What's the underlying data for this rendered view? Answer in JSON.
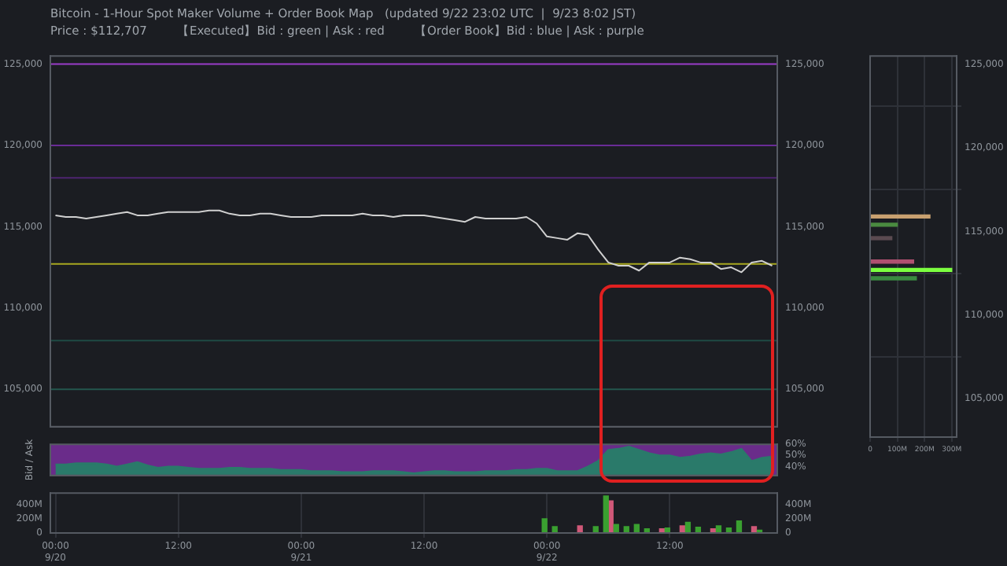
{
  "chart_data": [
    {
      "type": "line",
      "title": "Bitcoin - 1-Hour Spot Maker Volume + Order Book Map   (updated 9/22 23:02 UTC  |  9/23 8:02 JST)",
      "subtitle": "Price : $112,707        【Executed】Bid : green | Ask : red        【Order Book】Bid : blue | Ask : purple",
      "categories": [
        null,
        null,
        null,
        null,
        null,
        null,
        null,
        null,
        null,
        null,
        null,
        null,
        null,
        null,
        null,
        null,
        null,
        null,
        null,
        null,
        null,
        null,
        null,
        null,
        null,
        null,
        null,
        null,
        null,
        null,
        null,
        null,
        null,
        null,
        null,
        null,
        null,
        null,
        null,
        null,
        null,
        null,
        null,
        null,
        null,
        null,
        null,
        null,
        null,
        null,
        null,
        null,
        null,
        null,
        null,
        null,
        null,
        null,
        null,
        null,
        null,
        null,
        null,
        null,
        null,
        null,
        null,
        null,
        null,
        null,
        null
      ],
      "series": [
        {
          "color": "#d0d0d0",
          "values": [
            115700,
            115600,
            115600,
            115500,
            115600,
            115700,
            115800,
            115900,
            115700,
            115700,
            115800,
            115900,
            115900,
            115900,
            115900,
            116000,
            116000,
            115800,
            115700,
            115700,
            115800,
            115800,
            115700,
            115600,
            115600,
            115600,
            115700,
            115700,
            115700,
            115700,
            115800,
            115700,
            115700,
            115600,
            115700,
            115700,
            115700,
            115600,
            115500,
            115400,
            115300,
            115600,
            115500,
            115500,
            115500,
            115500,
            115600,
            115200,
            114400,
            114300,
            114200,
            114600,
            114500,
            113600,
            112800,
            112600,
            112600,
            112300,
            112800,
            112800,
            112800,
            113100,
            113000,
            112800,
            112800,
            112400,
            112500,
            112200,
            112800,
            112900,
            112600
          ]
        }
      ],
      "ylim": [
        102700,
        125500
      ],
      "yticks": [
        {
          "value": 105000,
          "label": "105,000"
        },
        {
          "value": 110000,
          "label": "110,000"
        },
        {
          "value": 115000,
          "label": "115,000"
        },
        {
          "value": 120000,
          "label": "120,000"
        },
        {
          "value": 125000,
          "label": "125,000"
        }
      ],
      "y2lim": [
        102700,
        125500
      ],
      "y2ticks": [
        {
          "value": 105000,
          "label": "105,000"
        },
        {
          "value": 110000,
          "label": "110,000"
        },
        {
          "value": 115000,
          "label": "115,000"
        },
        {
          "value": 120000,
          "label": "120,000"
        },
        {
          "value": 125000,
          "label": "125,000"
        }
      ],
      "tick_labels": "y",
      "ref_lines": [
        {
          "axis": "y",
          "value": 112707,
          "color": "#a8a820"
        },
        {
          "axis": "y",
          "value": 125000,
          "color": "#9a3cc8"
        },
        {
          "axis": "y",
          "value": 120000,
          "color": "#6a2c96"
        },
        {
          "axis": "y",
          "value": 118000,
          "color": "#4e2470"
        },
        {
          "axis": "y",
          "value": 108000,
          "color": "#1f4a44"
        },
        {
          "axis": "y",
          "value": 105000,
          "color": "#24564e"
        }
      ]
    },
    {
      "type": "area",
      "ylabel": "Bid / Ask",
      "categories": [
        null,
        null,
        null,
        null,
        null,
        null,
        null,
        null,
        null,
        null,
        null,
        null,
        null,
        null,
        null,
        null,
        null,
        null,
        null,
        null,
        null,
        null,
        null,
        null,
        null,
        null,
        null,
        null,
        null,
        null,
        null,
        null,
        null,
        null,
        null,
        null,
        null,
        null,
        null,
        null,
        null,
        null,
        null,
        null,
        null,
        null,
        null,
        null,
        null,
        null,
        null,
        null,
        null,
        null,
        null,
        null,
        null,
        null,
        null,
        null,
        null,
        null,
        null,
        null,
        null,
        null,
        null,
        null,
        null,
        null,
        null
      ],
      "series": [
        {
          "color": "#2a7a6a",
          "values": [
            42,
            42,
            43,
            43,
            43,
            42,
            40,
            42,
            44,
            41,
            39,
            40,
            40,
            39,
            38,
            38,
            38,
            39,
            39,
            38,
            38,
            38,
            37,
            37,
            37,
            36,
            36,
            36,
            35,
            35,
            35,
            36,
            36,
            36,
            35,
            34,
            35,
            36,
            36,
            35,
            35,
            35,
            36,
            36,
            36,
            37,
            37,
            38,
            38,
            36,
            36,
            36,
            40,
            45,
            55,
            56,
            58,
            55,
            52,
            50,
            50,
            48,
            49,
            51,
            52,
            51,
            53,
            56,
            45,
            48,
            49
          ]
        }
      ],
      "ylim": [
        32,
        60
      ],
      "yticks": [
        {
          "value": 40,
          "label": "40%"
        },
        {
          "value": 50,
          "label": "50%"
        },
        {
          "value": 60,
          "label": "60%"
        }
      ],
      "tick_labels": "y",
      "bands": [
        {
          "axis": "y",
          "from": 32,
          "to": 60,
          "color": "#6a2c8a"
        }
      ]
    },
    {
      "type": "bar",
      "categories": [
        "00:00\n9/20",
        null,
        null,
        null,
        null,
        null,
        null,
        null,
        null,
        null,
        null,
        null,
        "12:00",
        null,
        null,
        null,
        null,
        null,
        null,
        null,
        null,
        null,
        null,
        null,
        "00:00\n9/21",
        null,
        null,
        null,
        null,
        null,
        null,
        null,
        null,
        null,
        null,
        null,
        "12:00",
        null,
        null,
        null,
        null,
        null,
        null,
        null,
        null,
        null,
        null,
        null,
        "00:00\n9/22",
        null,
        null,
        null,
        null,
        null,
        null,
        null,
        null,
        null,
        null,
        null,
        "12:00",
        null,
        null,
        null,
        null,
        null,
        null,
        null,
        null,
        null,
        null
      ],
      "series": [
        {
          "color": "#3aa030",
          "values": [
            null,
            null,
            null,
            null,
            null,
            null,
            null,
            null,
            null,
            null,
            null,
            null,
            null,
            null,
            null,
            null,
            null,
            null,
            null,
            null,
            null,
            null,
            null,
            null,
            null,
            null,
            null,
            null,
            null,
            null,
            null,
            null,
            null,
            null,
            null,
            null,
            null,
            null,
            null,
            null,
            null,
            null,
            null,
            null,
            null,
            null,
            null,
            null,
            200,
            90,
            null,
            null,
            null,
            90,
            520,
            120,
            90,
            120,
            60,
            null,
            70,
            null,
            150,
            80,
            null,
            100,
            70,
            170,
            null,
            40,
            null
          ]
        },
        {
          "color": "#d05878",
          "values": [
            null,
            null,
            null,
            null,
            null,
            null,
            null,
            null,
            null,
            null,
            null,
            null,
            null,
            null,
            null,
            null,
            null,
            null,
            null,
            null,
            null,
            null,
            null,
            null,
            null,
            null,
            null,
            null,
            null,
            null,
            null,
            null,
            null,
            null,
            null,
            null,
            null,
            null,
            null,
            null,
            null,
            null,
            null,
            null,
            null,
            null,
            null,
            null,
            null,
            null,
            null,
            100,
            null,
            null,
            450,
            null,
            null,
            null,
            null,
            60,
            null,
            100,
            null,
            null,
            60,
            null,
            null,
            null,
            90,
            null,
            null
          ]
        }
      ],
      "ylim": [
        0,
        560
      ],
      "yticks": [
        0,
        {
          "value": 200,
          "label": "200M"
        },
        {
          "value": 400,
          "label": "400M"
        }
      ],
      "y2lim": [
        0,
        560
      ],
      "y2ticks": [
        0,
        {
          "value": 200,
          "label": "200M"
        },
        {
          "value": 400,
          "label": "400M"
        }
      ],
      "grid": "x"
    },
    {
      "type": "bar",
      "orientation": "horizontal",
      "x": [
        115900,
        115400,
        114600,
        113200,
        112700,
        112200
      ],
      "series": [
        {
          "values": [
            220,
            100,
            80,
            160,
            300,
            170
          ]
        }
      ],
      "colors": [
        "#c8a070",
        "#4a8a40",
        "#5a4a50",
        "#b05070",
        "#7cff40",
        "#3a8a40"
      ],
      "xlim": [
        0,
        318
      ],
      "xticks": [
        0,
        {
          "value": 100,
          "label": "100M"
        },
        {
          "value": 200,
          "label": "200M"
        },
        {
          "value": 300,
          "label": "300M"
        }
      ],
      "ylim": [
        102700,
        125500
      ],
      "yticks": [
        {
          "value": 105000,
          "label": "105,000"
        },
        {
          "value": 110000,
          "label": "110,000"
        },
        {
          "value": 115000,
          "label": "115,000"
        },
        {
          "value": 120000,
          "label": "120,000"
        },
        {
          "value": 125000,
          "label": "125,000"
        }
      ],
      "grid": true
    }
  ]
}
